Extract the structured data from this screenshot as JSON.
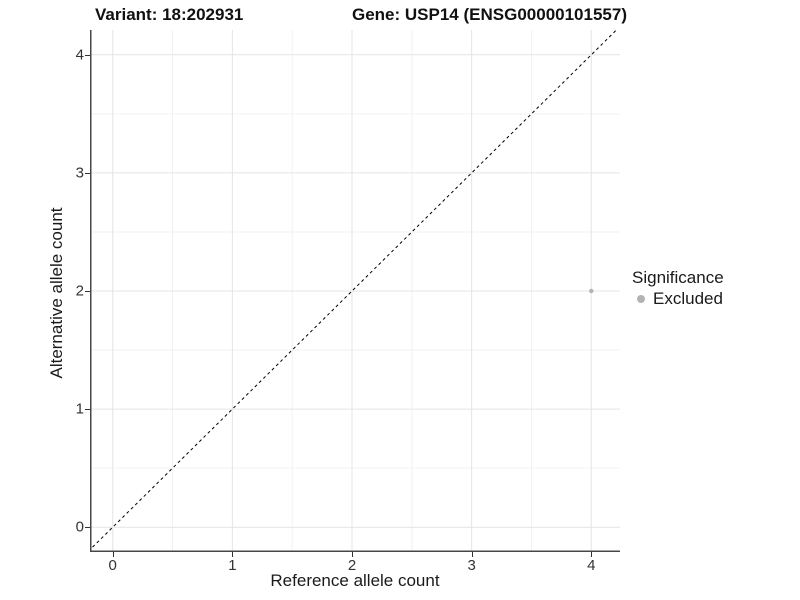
{
  "titles": {
    "variant": "Variant: 18:202931",
    "gene": "Gene: USP14 (ENSG00000101557)"
  },
  "chart_data": {
    "type": "scatter",
    "title_left": "Variant: 18:202931",
    "title_right": "Gene: USP14 (ENSG00000101557)",
    "xlabel": "Reference allele count",
    "ylabel": "Alternative allele count",
    "xlim": [
      -0.19,
      4.24
    ],
    "ylim": [
      -0.21,
      4.21
    ],
    "x_ticks": [
      0,
      1,
      2,
      3,
      4
    ],
    "y_ticks": [
      0,
      1,
      2,
      3,
      4
    ],
    "minor_ticks": [
      0.5,
      1.5,
      2.5,
      3.5
    ],
    "grid": true,
    "series": [
      {
        "name": "Excluded",
        "points": [
          {
            "x": 4,
            "y": 2
          }
        ],
        "color": "#b3b3b3"
      }
    ],
    "reference_line": {
      "slope": 1,
      "intercept": 0,
      "style": "dashed",
      "color": "#000000"
    },
    "legend_position": "right",
    "colors": {
      "background": "#ffffff",
      "grid_major": "#e4e4e4",
      "grid_minor": "#f2f2f2",
      "axis_line": "#474747",
      "tick_mark": "#333333",
      "point": "#b3b3b3"
    }
  },
  "legend": {
    "title": "Significance",
    "items": [
      {
        "label": "Excluded",
        "color": "#b3b3b3"
      }
    ]
  }
}
